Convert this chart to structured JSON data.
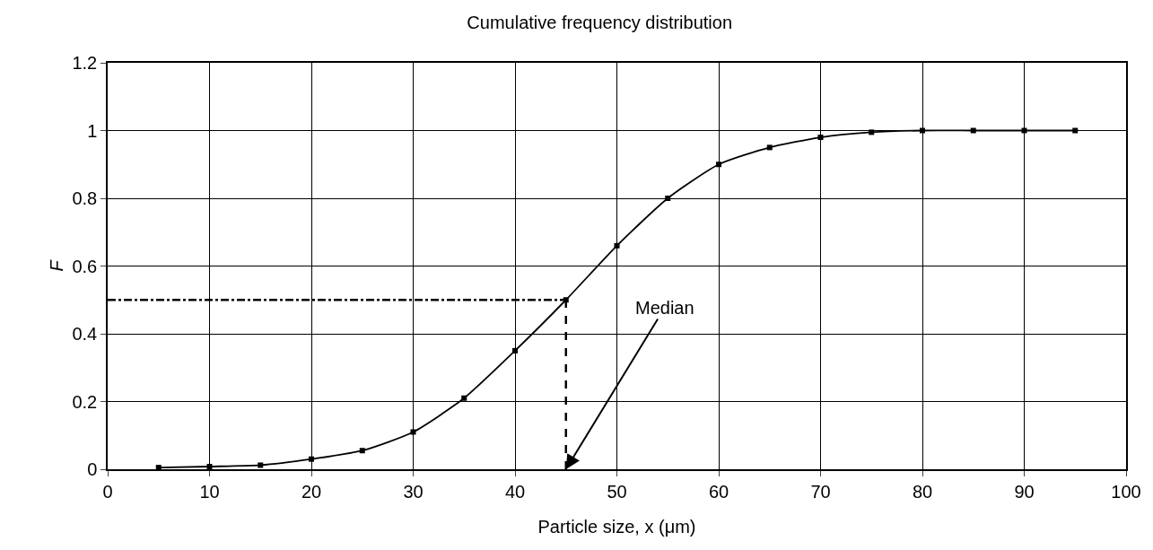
{
  "chart_data": {
    "type": "line",
    "title": "Cumulative frequency distribution",
    "xlabel": "Particle size, x (μm)",
    "ylabel": "F",
    "x": [
      5,
      10,
      15,
      20,
      25,
      30,
      35,
      40,
      45,
      50,
      55,
      60,
      65,
      70,
      75,
      80,
      85,
      90,
      95
    ],
    "series": [
      {
        "color": "#000000",
        "values": [
          0.005,
          0.008,
          0.012,
          0.03,
          0.055,
          0.11,
          0.21,
          0.35,
          0.5,
          0.66,
          0.8,
          0.9,
          0.95,
          0.98,
          0.995,
          1,
          1,
          1,
          1
        ]
      }
    ],
    "xlim": [
      0,
      100
    ],
    "xticks": [
      0,
      10,
      20,
      30,
      40,
      50,
      60,
      70,
      80,
      90,
      100
    ],
    "ylim": [
      0,
      1.2
    ],
    "yticks": [
      0,
      0.2,
      0.4,
      0.6,
      0.8,
      1,
      1.2
    ],
    "ref_lines": [
      {
        "axis": "y",
        "value": 0.5,
        "line_style": "dotted",
        "color": "#000000"
      },
      {
        "axis": "x",
        "value": 45,
        "line_style": "dashed",
        "color": "#000000"
      }
    ],
    "annotations": [
      {
        "text": "Median",
        "x": 45,
        "y": 0
      }
    ],
    "grid": true,
    "marker": "square",
    "line_style": "solid"
  }
}
